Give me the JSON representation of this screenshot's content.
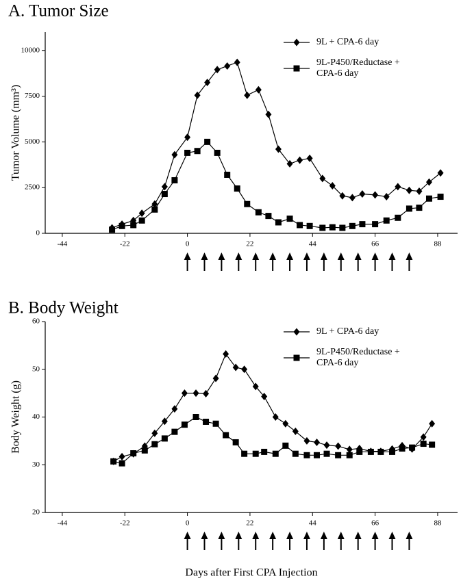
{
  "chart_data": [
    {
      "type": "line",
      "title": "A. Tumor Size",
      "ylabel": "Tumor Volume (mm³)",
      "x": [
        -26.5,
        -23,
        -19,
        -16,
        -11.5,
        -8,
        -4.5,
        0,
        3.5,
        7,
        10.5,
        14,
        17.5,
        21,
        25,
        28.5,
        32,
        36,
        39.5,
        43,
        47.5,
        51,
        54.5,
        58,
        61.5,
        66,
        70,
        74,
        78,
        81.5,
        85,
        89
      ],
      "series": [
        {
          "name": "9L + CPA-6 day",
          "color": "#000000",
          "marker": "diamond",
          "values": [
            300,
            500,
            700,
            1100,
            1600,
            2550,
            4300,
            5250,
            7550,
            8250,
            8950,
            9150,
            9350,
            7550,
            7850,
            6500,
            4600,
            3800,
            4000,
            4100,
            3000,
            2600,
            2050,
            1950,
            2150,
            2100,
            2000,
            2550,
            2350,
            2300,
            2800,
            3300
          ]
        },
        {
          "name": "9L-P450/Reductase + CPA-6 day",
          "color": "#000000",
          "marker": "square",
          "values": [
            200,
            400,
            450,
            700,
            1300,
            2150,
            2900,
            4400,
            4500,
            5000,
            4400,
            3200,
            2450,
            1600,
            1150,
            950,
            600,
            800,
            450,
            400,
            300,
            330,
            300,
            400,
            500,
            500,
            700,
            850,
            1350,
            1400,
            1900,
            2000
          ]
        }
      ],
      "injection_days": [
        0,
        6,
        12,
        18,
        24,
        30,
        36,
        42,
        48,
        54,
        60,
        66,
        72,
        78
      ],
      "xlim": [
        -50,
        95
      ],
      "xticks": [
        -44,
        -22,
        0,
        22,
        44,
        66,
        88
      ],
      "ylim": [
        0,
        11000
      ],
      "yticks": [
        0,
        2500,
        5000,
        7500,
        10000
      ],
      "legend": "upper right"
    },
    {
      "type": "line",
      "title": "B. Body Weight",
      "ylabel": "Body Weight (g)",
      "xlabel": "Days after First CPA Injection",
      "x": [
        -26,
        -23,
        -19,
        -15,
        -11.5,
        -8,
        -4.5,
        -1,
        3,
        6.5,
        10,
        13.5,
        17,
        20,
        24,
        27,
        31,
        34.5,
        38,
        42,
        45.5,
        49,
        53,
        57,
        60.5,
        64.5,
        68,
        72,
        75.5,
        79,
        83,
        86
      ],
      "series": [
        {
          "name": "9L + CPA-6 day",
          "color": "#000000",
          "marker": "diamond",
          "values": [
            30.7,
            31.7,
            32.3,
            33.9,
            36.6,
            39.1,
            41.7,
            45.0,
            45.0,
            44.9,
            48.1,
            53.2,
            50.4,
            50.0,
            46.4,
            44.3,
            40.0,
            38.6,
            37.0,
            35.0,
            34.7,
            34.1,
            33.9,
            33.2,
            33.4,
            32.8,
            32.8,
            33.3,
            34.0,
            33.3,
            35.8,
            38.6
          ]
        },
        {
          "name": "9L-P450/Reductase + CPA-6 day",
          "color": "#000000",
          "marker": "square",
          "values": [
            30.7,
            30.3,
            32.4,
            33.0,
            34.3,
            35.5,
            36.9,
            38.4,
            40.0,
            39.0,
            38.6,
            36.2,
            34.7,
            32.3,
            32.3,
            32.7,
            32.3,
            34.0,
            32.3,
            32.0,
            32.0,
            32.3,
            32.0,
            32.0,
            32.7,
            32.7,
            32.7,
            32.7,
            33.4,
            33.6,
            34.4,
            34.2
          ]
        }
      ],
      "injection_days": [
        0,
        6,
        12,
        18,
        24,
        30,
        36,
        42,
        48,
        54,
        60,
        66,
        72,
        78
      ],
      "xlim": [
        -50,
        95
      ],
      "xticks": [
        -44,
        -22,
        0,
        22,
        44,
        66,
        88
      ],
      "ylim": [
        20,
        60
      ],
      "yticks": [
        20,
        30,
        40,
        50,
        60
      ],
      "legend": "upper right"
    }
  ]
}
